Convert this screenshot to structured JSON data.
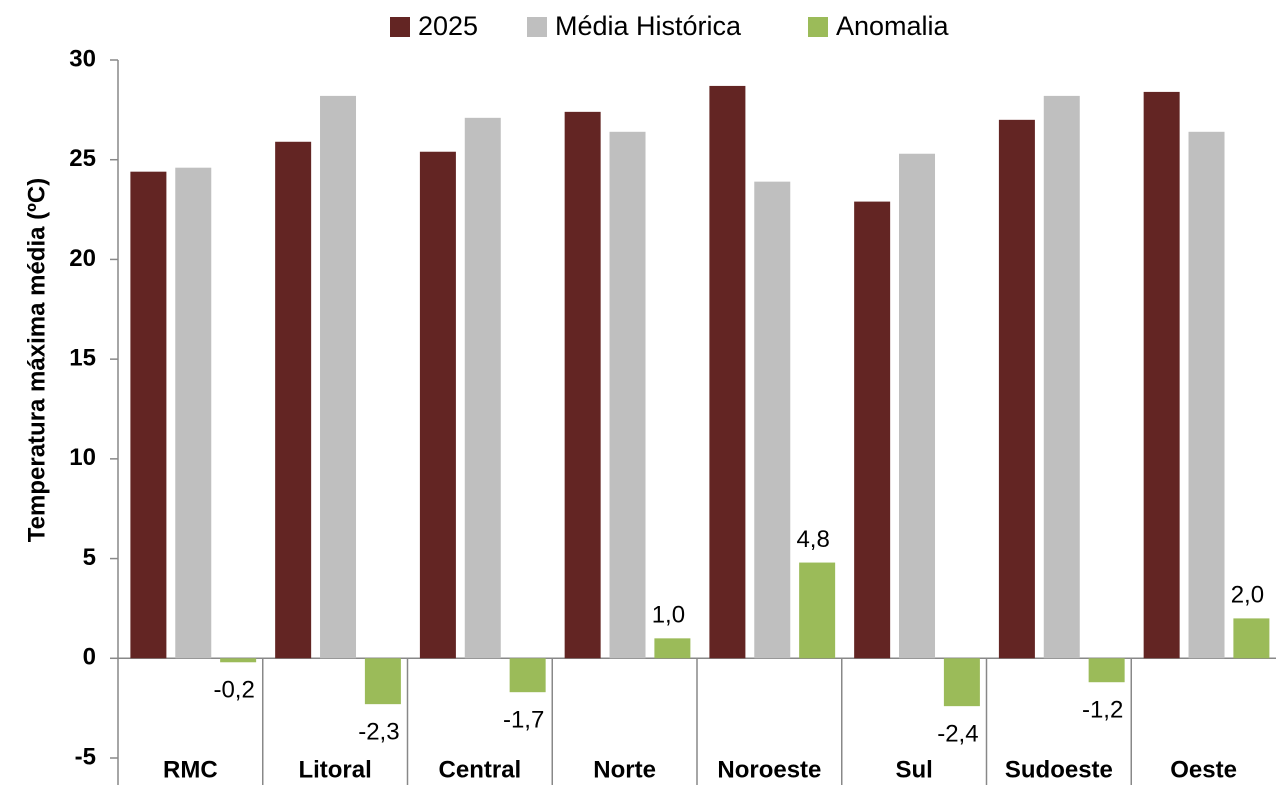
{
  "chart_data": {
    "type": "bar",
    "y_label": "Temperatura máxima média (ºC)",
    "categories": [
      "RMC",
      "Litoral",
      "Central",
      "Norte",
      "Noroeste",
      "Sul",
      "Sudoeste",
      "Oeste"
    ],
    "series": [
      {
        "name": "2025",
        "color": "#632523",
        "values": [
          24.4,
          25.9,
          25.4,
          27.4,
          28.7,
          22.9,
          27.0,
          28.4
        ]
      },
      {
        "name": "Média Histórica",
        "color": "#bfbfbf",
        "values": [
          24.6,
          28.2,
          27.1,
          26.4,
          23.9,
          25.3,
          28.2,
          26.4
        ]
      },
      {
        "name": "Anomalia",
        "color": "#9bbb59",
        "values": [
          -0.2,
          -2.3,
          -1.7,
          1.0,
          4.8,
          -2.4,
          -1.2,
          2.0
        ],
        "value_labels": [
          "-0,2",
          "-2,3",
          "-1,7",
          "1,0",
          "4,8",
          "-2,4",
          "-1,2",
          "2,0"
        ]
      }
    ],
    "ylim": [
      -5,
      30
    ],
    "yticks": [
      -5,
      0,
      5,
      10,
      15,
      20,
      25,
      30
    ]
  }
}
